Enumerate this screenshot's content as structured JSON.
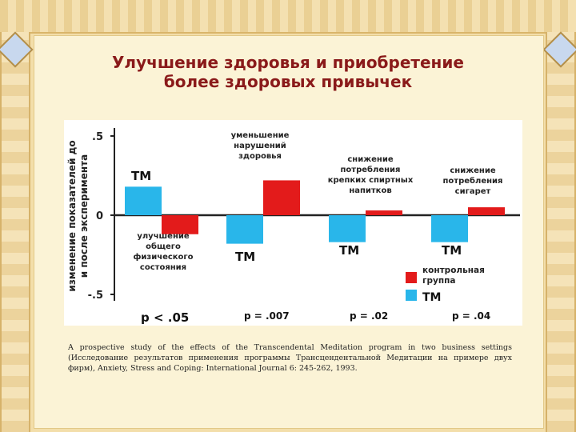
{
  "slide": {
    "title_line1": "Улучшение здоровья и приобретение",
    "title_line2": "более здоровых привычек",
    "citation": "A prospective study of the effects of the Transcendental Meditation program in two business settings (Исследование результатов применения программы Трансцендентальной Медитации на примере двух фирм), Anxiety, Stress and Coping: International Journal 6: 245-262, 1993."
  },
  "chart_data": {
    "type": "bar",
    "ylabel": "изменение показателей до и после эксперимента",
    "ylim": [
      -0.5,
      0.5
    ],
    "yticks": [
      {
        "value": 0.5,
        "label": ".5"
      },
      {
        "value": 0,
        "label": "0"
      },
      {
        "value": -0.5,
        "label": "-.5"
      }
    ],
    "colors": {
      "tm": "#29b6ea",
      "control": "#e31b1b"
    },
    "groups": [
      {
        "label": "улучшение общего физического состояния",
        "tm_tag": "ТМ",
        "tm": 0.18,
        "control": -0.12,
        "p": "p < .05"
      },
      {
        "label": "уменьшение нарушений здоровья",
        "tm_tag": "ТМ",
        "tm": -0.18,
        "control": 0.22,
        "p": "p = .007"
      },
      {
        "label": "снижение потребления крепких спиртных напитков",
        "tm_tag": "ТМ",
        "tm": -0.17,
        "control": 0.03,
        "p": "p = .02"
      },
      {
        "label": "снижение потребления сигарет",
        "tm_tag": "ТМ",
        "tm": -0.17,
        "control": 0.05,
        "p": "p =  .04"
      }
    ],
    "legend": [
      {
        "key": "control",
        "label": "контрольная группа"
      },
      {
        "key": "tm",
        "label": "ТМ"
      }
    ]
  }
}
